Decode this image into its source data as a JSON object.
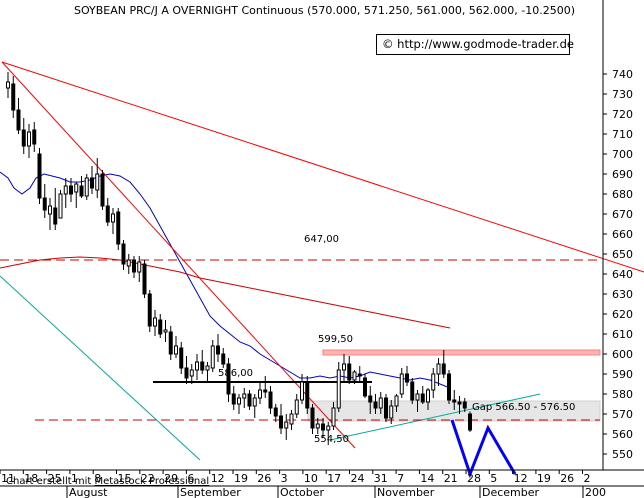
{
  "header": {
    "title": "SOYBEAN PRC/J A OVERNIGHT Continuous (570.000, 571.250, 561.000, 562.000, -10.2500)"
  },
  "copyright": "© http://www.godmode-trader.de",
  "credit": {
    "prefix": "Chart erstellt mit ",
    "link": "Metastock Professional"
  },
  "colors": {
    "background": "#ffffff",
    "candle": "#000000",
    "trendline_red": "#ff0000",
    "ma_short": "#0000cc",
    "ma_long": "#cc0000",
    "support_line": "#00aa99",
    "projection": "#0000ff",
    "resistance_band": "#ffb3b3",
    "gap_band": "#e6e6e6"
  },
  "chart_data": {
    "type": "candlestick",
    "title": "SOYBEAN PRC/J A OVERNIGHT Continuous (570.000, 571.250, 561.000, 562.000, -10.2500)",
    "ylim": [
      540,
      747
    ],
    "y_ticks": [
      550,
      560,
      570,
      580,
      590,
      600,
      610,
      620,
      630,
      640,
      650,
      660,
      670,
      680,
      690,
      700,
      710,
      720,
      730,
      740
    ],
    "x_day_ticks": [
      "11",
      "18",
      "25",
      "1",
      "8",
      "15",
      "22",
      "29",
      "6",
      "12",
      "19",
      "26",
      "3",
      "10",
      "17",
      "24",
      "31",
      "7",
      "14",
      "21",
      "28",
      "5",
      "12",
      "19",
      "26",
      "2"
    ],
    "x_month_labels": [
      "August",
      "September",
      "October",
      "November",
      "December",
      "200"
    ],
    "candles": [
      {
        "o": 733,
        "h": 741,
        "l": 728,
        "c": 736
      },
      {
        "o": 735,
        "h": 739,
        "l": 718,
        "c": 722
      },
      {
        "o": 722,
        "h": 728,
        "l": 710,
        "c": 712
      },
      {
        "o": 712,
        "h": 718,
        "l": 700,
        "c": 704
      },
      {
        "o": 704,
        "h": 715,
        "l": 698,
        "c": 711
      },
      {
        "o": 712,
        "h": 716,
        "l": 701,
        "c": 705
      },
      {
        "o": 700,
        "h": 703,
        "l": 675,
        "c": 678
      },
      {
        "o": 678,
        "h": 685,
        "l": 668,
        "c": 672
      },
      {
        "o": 670,
        "h": 678,
        "l": 662,
        "c": 674
      },
      {
        "o": 673,
        "h": 683,
        "l": 662,
        "c": 665
      },
      {
        "o": 668,
        "h": 682,
        "l": 668,
        "c": 680
      },
      {
        "o": 680,
        "h": 688,
        "l": 673,
        "c": 684
      },
      {
        "o": 684,
        "h": 688,
        "l": 676,
        "c": 680
      },
      {
        "o": 681,
        "h": 686,
        "l": 673,
        "c": 685
      },
      {
        "o": 684,
        "h": 689,
        "l": 678,
        "c": 679
      },
      {
        "o": 679,
        "h": 690,
        "l": 677,
        "c": 688
      },
      {
        "o": 688,
        "h": 694,
        "l": 680,
        "c": 683
      },
      {
        "o": 682,
        "h": 698,
        "l": 678,
        "c": 690
      },
      {
        "o": 690,
        "h": 692,
        "l": 672,
        "c": 674
      },
      {
        "o": 674,
        "h": 678,
        "l": 664,
        "c": 666
      },
      {
        "o": 666,
        "h": 673,
        "l": 660,
        "c": 670
      },
      {
        "o": 671,
        "h": 673,
        "l": 652,
        "c": 655
      },
      {
        "o": 655,
        "h": 657,
        "l": 642,
        "c": 645
      },
      {
        "o": 644,
        "h": 650,
        "l": 640,
        "c": 647
      },
      {
        "o": 647,
        "h": 649,
        "l": 638,
        "c": 641
      },
      {
        "o": 641,
        "h": 649,
        "l": 636,
        "c": 646
      },
      {
        "o": 645,
        "h": 647,
        "l": 628,
        "c": 630
      },
      {
        "o": 630,
        "h": 632,
        "l": 611,
        "c": 614
      },
      {
        "o": 614,
        "h": 622,
        "l": 609,
        "c": 618
      },
      {
        "o": 617,
        "h": 620,
        "l": 608,
        "c": 610
      },
      {
        "o": 611,
        "h": 617,
        "l": 606,
        "c": 612
      },
      {
        "o": 611,
        "h": 614,
        "l": 597,
        "c": 600
      },
      {
        "o": 600,
        "h": 609,
        "l": 598,
        "c": 604
      },
      {
        "o": 603,
        "h": 606,
        "l": 590,
        "c": 593
      },
      {
        "o": 593,
        "h": 599,
        "l": 585,
        "c": 588
      },
      {
        "o": 589,
        "h": 595,
        "l": 585,
        "c": 592
      },
      {
        "o": 592,
        "h": 600,
        "l": 587,
        "c": 596
      },
      {
        "o": 596,
        "h": 602,
        "l": 590,
        "c": 592
      },
      {
        "o": 592,
        "h": 596,
        "l": 586,
        "c": 594
      },
      {
        "o": 593,
        "h": 607,
        "l": 591,
        "c": 604
      },
      {
        "o": 604,
        "h": 610,
        "l": 596,
        "c": 600
      },
      {
        "o": 600,
        "h": 603,
        "l": 593,
        "c": 595
      },
      {
        "o": 595,
        "h": 598,
        "l": 576,
        "c": 580
      },
      {
        "o": 580,
        "h": 584,
        "l": 572,
        "c": 575
      },
      {
        "o": 575,
        "h": 580,
        "l": 570,
        "c": 578
      },
      {
        "o": 578,
        "h": 583,
        "l": 573,
        "c": 580
      },
      {
        "o": 580,
        "h": 582,
        "l": 572,
        "c": 574
      },
      {
        "o": 574,
        "h": 580,
        "l": 568,
        "c": 578
      },
      {
        "o": 578,
        "h": 586,
        "l": 575,
        "c": 582
      },
      {
        "o": 582,
        "h": 589,
        "l": 578,
        "c": 581
      },
      {
        "o": 581,
        "h": 584,
        "l": 570,
        "c": 573
      },
      {
        "o": 573,
        "h": 575,
        "l": 566,
        "c": 569
      },
      {
        "o": 569,
        "h": 575,
        "l": 560,
        "c": 563
      },
      {
        "o": 563,
        "h": 570,
        "l": 557,
        "c": 566
      },
      {
        "o": 565,
        "h": 572,
        "l": 562,
        "c": 570
      },
      {
        "o": 570,
        "h": 580,
        "l": 568,
        "c": 577
      },
      {
        "o": 577,
        "h": 590,
        "l": 575,
        "c": 586
      },
      {
        "o": 586,
        "h": 589,
        "l": 570,
        "c": 573
      },
      {
        "o": 573,
        "h": 575,
        "l": 560,
        "c": 563
      },
      {
        "o": 563,
        "h": 568,
        "l": 560,
        "c": 565
      },
      {
        "o": 565,
        "h": 568,
        "l": 558,
        "c": 562
      },
      {
        "o": 562,
        "h": 566,
        "l": 554.5,
        "c": 564
      },
      {
        "o": 564,
        "h": 576,
        "l": 562,
        "c": 573
      },
      {
        "o": 573,
        "h": 596,
        "l": 571,
        "c": 592
      },
      {
        "o": 592,
        "h": 600,
        "l": 586,
        "c": 595
      },
      {
        "o": 595,
        "h": 599,
        "l": 585,
        "c": 587
      },
      {
        "o": 587,
        "h": 592,
        "l": 585,
        "c": 591
      },
      {
        "o": 590,
        "h": 594,
        "l": 586,
        "c": 589
      },
      {
        "o": 588,
        "h": 590,
        "l": 578,
        "c": 579
      },
      {
        "o": 579,
        "h": 584,
        "l": 570,
        "c": 576
      },
      {
        "o": 576,
        "h": 580,
        "l": 570,
        "c": 573
      },
      {
        "o": 573,
        "h": 581,
        "l": 570,
        "c": 578
      },
      {
        "o": 578,
        "h": 580,
        "l": 566,
        "c": 568
      },
      {
        "o": 568,
        "h": 577,
        "l": 565,
        "c": 574
      },
      {
        "o": 574,
        "h": 580,
        "l": 571,
        "c": 579
      },
      {
        "o": 580,
        "h": 593,
        "l": 578,
        "c": 590
      },
      {
        "o": 590,
        "h": 594,
        "l": 584,
        "c": 586
      },
      {
        "o": 586,
        "h": 588,
        "l": 575,
        "c": 577
      },
      {
        "o": 577,
        "h": 582,
        "l": 571,
        "c": 580
      },
      {
        "o": 580,
        "h": 584,
        "l": 575,
        "c": 576
      },
      {
        "o": 576,
        "h": 583,
        "l": 572,
        "c": 582
      },
      {
        "o": 582,
        "h": 593,
        "l": 578,
        "c": 590
      },
      {
        "o": 590,
        "h": 598,
        "l": 584,
        "c": 595
      },
      {
        "o": 595,
        "h": 602,
        "l": 588,
        "c": 590
      },
      {
        "o": 590,
        "h": 592,
        "l": 575,
        "c": 577
      },
      {
        "o": 577,
        "h": 582,
        "l": 572,
        "c": 576
      },
      {
        "o": 576,
        "h": 579,
        "l": 570,
        "c": 575
      },
      {
        "o": 576,
        "h": 578,
        "l": 571,
        "c": 573
      },
      {
        "o": 570,
        "h": 571.25,
        "l": 561,
        "c": 562
      }
    ],
    "moving_average_short": [
      [
        0,
        691
      ],
      [
        8,
        688
      ],
      [
        14,
        683
      ],
      [
        22,
        680
      ],
      [
        30,
        683
      ],
      [
        36,
        688
      ],
      [
        44,
        690
      ],
      [
        52,
        689
      ],
      [
        60,
        688
      ],
      [
        70,
        686
      ],
      [
        80,
        686
      ],
      [
        90,
        687
      ],
      [
        100,
        689
      ],
      [
        110,
        690
      ],
      [
        120,
        689
      ],
      [
        130,
        686
      ],
      [
        140,
        680
      ],
      [
        150,
        673
      ],
      [
        160,
        664
      ],
      [
        170,
        655
      ],
      [
        180,
        646
      ],
      [
        190,
        637
      ],
      [
        200,
        628
      ],
      [
        210,
        619
      ],
      [
        220,
        614
      ],
      [
        230,
        610
      ],
      [
        240,
        606
      ],
      [
        250,
        604
      ],
      [
        260,
        600
      ],
      [
        270,
        597
      ],
      [
        280,
        594
      ],
      [
        290,
        591
      ],
      [
        300,
        588
      ],
      [
        310,
        588
      ],
      [
        320,
        589
      ],
      [
        330,
        588
      ],
      [
        340,
        589
      ],
      [
        350,
        588
      ],
      [
        360,
        589
      ],
      [
        370,
        591
      ],
      [
        380,
        590
      ],
      [
        390,
        589
      ],
      [
        400,
        588
      ],
      [
        410,
        587
      ],
      [
        420,
        588
      ],
      [
        430,
        587
      ],
      [
        440,
        585
      ],
      [
        450,
        583
      ]
    ],
    "moving_average_long": [
      [
        0,
        643
      ],
      [
        20,
        645
      ],
      [
        40,
        647
      ],
      [
        60,
        648
      ],
      [
        80,
        648.5
      ],
      [
        100,
        648
      ],
      [
        120,
        647
      ],
      [
        140,
        645
      ],
      [
        160,
        643
      ],
      [
        180,
        641
      ],
      [
        200,
        638
      ],
      [
        220,
        636
      ],
      [
        240,
        634
      ],
      [
        260,
        632
      ],
      [
        280,
        630
      ],
      [
        300,
        628
      ],
      [
        320,
        626
      ],
      [
        340,
        624
      ],
      [
        360,
        622
      ],
      [
        380,
        620
      ],
      [
        400,
        618
      ],
      [
        420,
        616
      ],
      [
        440,
        614
      ],
      [
        450,
        613
      ]
    ],
    "trendlines": [
      {
        "name": "downtrend-1",
        "x1": 2,
        "y1": 746,
        "x2": 355,
        "y2": 553,
        "color": "#ff0000"
      },
      {
        "name": "downtrend-2",
        "x1": 2,
        "y1": 746,
        "x2": 644,
        "y2": 641,
        "color": "#ff0000"
      },
      {
        "name": "support-lower",
        "x1": 0,
        "y1": 639,
        "x2": 200,
        "y2": 547,
        "color": "#00aa99"
      },
      {
        "name": "support-rising",
        "x1": 330,
        "y1": 557,
        "x2": 540,
        "y2": 580,
        "color": "#00aa99"
      }
    ],
    "horizontal_lines": [
      {
        "name": "resistance-647",
        "y": 647,
        "x1": 0,
        "x2": 644,
        "dashed": true,
        "color": "#cc0000"
      },
      {
        "name": "support-567",
        "y": 567,
        "x1": 35,
        "x2": 644,
        "dashed": true,
        "color": "#cc0000"
      },
      {
        "name": "neckline-586",
        "y": 586,
        "x1": 153,
        "x2": 372,
        "dashed": false,
        "color": "#000000"
      }
    ],
    "bands": [
      {
        "name": "resistance-zone",
        "y1": 599.5,
        "y2": 602,
        "x1": 323,
        "x2": 600
      },
      {
        "name": "gap-zone",
        "y1": 566.5,
        "y2": 576.5,
        "x1": 308,
        "x2": 600
      }
    ],
    "projection": [
      [
        452,
        567
      ],
      [
        470,
        540
      ],
      [
        488,
        563
      ],
      [
        515,
        540
      ]
    ],
    "annotations": [
      {
        "text": "647,00",
        "x": 304,
        "y": 656
      },
      {
        "text": "599,50",
        "x": 318,
        "y": 606
      },
      {
        "text": "586,00",
        "x": 218,
        "y": 589
      },
      {
        "text": "554,50",
        "x": 314,
        "y": 556
      },
      {
        "text": "Gap 566.50 - 576.50",
        "x": 472,
        "y": 572
      }
    ]
  }
}
